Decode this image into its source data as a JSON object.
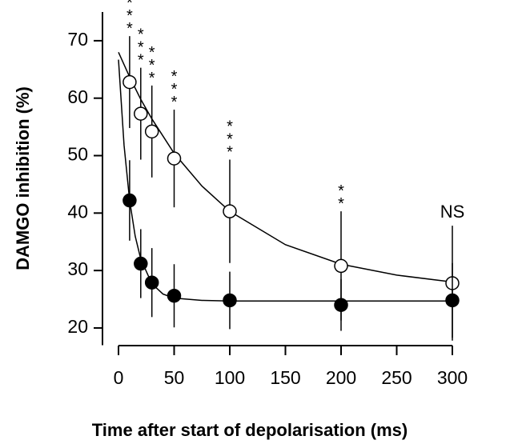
{
  "chart_data": {
    "type": "scatter",
    "xlabel": "Time after start of depolarisation (ms)",
    "ylabel": "DAMGO inhibition (%)",
    "xlim": [
      0,
      300
    ],
    "ylim": [
      17,
      75
    ],
    "xticks": [
      0,
      50,
      100,
      150,
      200,
      250,
      300
    ],
    "yticks": [
      20,
      30,
      40,
      50,
      60,
      70
    ],
    "x": [
      10,
      20,
      30,
      50,
      100,
      200,
      300
    ],
    "series": [
      {
        "marker": "open",
        "color": "#000000",
        "values": [
          62.8,
          57.3,
          54.2,
          49.5,
          40.3,
          30.8,
          27.8
        ],
        "errors": [
          8,
          8,
          8,
          8.5,
          9,
          9.5,
          10
        ]
      },
      {
        "marker": "filled",
        "color": "#000000",
        "values": [
          42.2,
          31.2,
          27.9,
          25.6,
          24.8,
          24,
          24.8
        ],
        "errors": [
          7,
          6,
          6,
          5.5,
          5,
          4.5,
          6.5
        ]
      }
    ],
    "fits": [
      {
        "x": [
          0,
          10,
          20,
          30,
          50,
          75,
          100,
          150,
          200,
          250,
          300
        ],
        "values": [
          68,
          63.7,
          59.8,
          56.4,
          50.4,
          44.7,
          40.3,
          34.5,
          31.1,
          29.2,
          28.0
        ]
      },
      {
        "x": [
          0,
          5,
          10,
          15,
          20,
          30,
          40,
          50,
          75,
          100,
          300
        ],
        "values": [
          66.7,
          51.8,
          42.2,
          36,
          32,
          27.7,
          25.9,
          25.2,
          24.8,
          24.7,
          24.7
        ]
      }
    ],
    "annotations": [
      {
        "text": "***",
        "x": 10,
        "vertical": true
      },
      {
        "text": "***",
        "x": 20,
        "vertical": true
      },
      {
        "text": "***",
        "x": 30,
        "vertical": true
      },
      {
        "text": "***",
        "x": 50,
        "vertical": true
      },
      {
        "text": "***",
        "x": 100,
        "vertical": true
      },
      {
        "text": "**",
        "x": 200,
        "vertical": true
      },
      {
        "text": "NS",
        "x": 300,
        "vertical": false
      }
    ]
  }
}
